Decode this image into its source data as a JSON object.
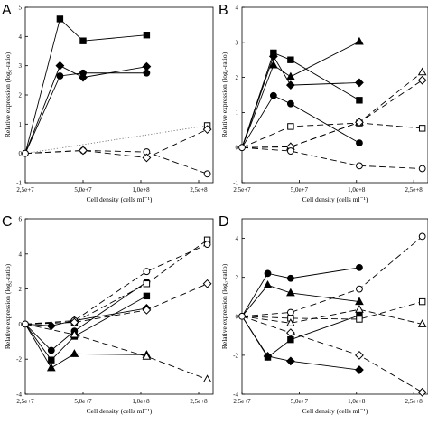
{
  "chart_data": [
    {
      "type": "line",
      "panel_label": "A",
      "xlabel": "Cell density (cells ml⁻¹)",
      "ylabel": "Relative expression (log₂-ratio)",
      "x_tick_labels": [
        "2,5e+7",
        "5,0e+7",
        "1,0e+8",
        "2,5e+8"
      ],
      "xlim": [
        0,
        3.25
      ],
      "ylim": [
        -1,
        5
      ],
      "y_ticks": [
        -1,
        0,
        1,
        2,
        3,
        4,
        5
      ],
      "series": [
        {
          "marker": "square-filled",
          "dash": "solid",
          "x": [
            0,
            0.6,
            1.0,
            2.1
          ],
          "y": [
            0,
            4.6,
            3.85,
            4.05
          ]
        },
        {
          "marker": "diamond-filled",
          "dash": "solid",
          "x": [
            0,
            0.6,
            1.0,
            2.1
          ],
          "y": [
            0,
            3.0,
            2.6,
            2.97
          ]
        },
        {
          "marker": "circle-filled",
          "dash": "solid",
          "x": [
            0,
            0.6,
            1.0,
            2.1
          ],
          "y": [
            0,
            2.65,
            2.75,
            2.75
          ]
        },
        {
          "marker": "square-open",
          "dash": "dotted",
          "x": [
            0,
            3.15
          ],
          "y": [
            0,
            0.95
          ]
        },
        {
          "marker": "circle-open",
          "dash": "dashed",
          "x": [
            0,
            1.0,
            2.1,
            3.15
          ],
          "y": [
            0,
            0.1,
            0.05,
            -0.7
          ]
        },
        {
          "marker": "diamond-open",
          "dash": "dashed",
          "x": [
            0,
            1.0,
            2.1,
            3.15
          ],
          "y": [
            0,
            0.1,
            -0.15,
            0.82
          ]
        }
      ]
    },
    {
      "type": "line",
      "panel_label": "B",
      "xlabel": "Cell density (cells ml⁻¹)",
      "ylabel": "Relative expression (log₂-ratio)",
      "x_tick_labels": [
        "2,5e+7",
        "5,0e+7",
        "1,0e+8",
        "2,5e+8"
      ],
      "xlim": [
        0,
        3.25
      ],
      "ylim": [
        -1,
        4
      ],
      "y_ticks": [
        -1,
        0,
        1,
        2,
        3,
        4
      ],
      "series": [
        {
          "marker": "square-filled",
          "dash": "solid",
          "x": [
            0,
            0.55,
            0.85,
            2.05
          ],
          "y": [
            0,
            2.7,
            2.5,
            1.35
          ]
        },
        {
          "marker": "triangle-filled",
          "dash": "solid",
          "x": [
            0,
            0.55,
            0.85,
            2.05
          ],
          "y": [
            0,
            2.35,
            2.02,
            3.02
          ]
        },
        {
          "marker": "diamond-filled",
          "dash": "solid",
          "x": [
            0,
            0.55,
            0.85,
            2.05
          ],
          "y": [
            0,
            2.6,
            1.78,
            1.85
          ]
        },
        {
          "marker": "circle-filled",
          "dash": "solid",
          "x": [
            0,
            0.55,
            0.85,
            2.05
          ],
          "y": [
            0,
            1.48,
            1.25,
            0.13
          ]
        },
        {
          "marker": "square-open",
          "dash": "dashed",
          "x": [
            0,
            0.85,
            2.05,
            3.15
          ],
          "y": [
            0,
            0.6,
            0.7,
            0.55
          ]
        },
        {
          "marker": "triangle-open",
          "dash": "dashed",
          "x": [
            0,
            0.85,
            2.05,
            3.15
          ],
          "y": [
            0,
            0.02,
            0.72,
            2.15
          ]
        },
        {
          "marker": "diamond-open",
          "dash": "dashed",
          "x": [
            0,
            0.85,
            2.05,
            3.15
          ],
          "y": [
            0,
            0.02,
            0.72,
            1.92
          ]
        },
        {
          "marker": "circle-open",
          "dash": "dashed",
          "x": [
            0,
            0.85,
            2.05,
            3.15
          ],
          "y": [
            0,
            -0.1,
            -0.52,
            -0.6
          ]
        }
      ]
    },
    {
      "type": "line",
      "panel_label": "C",
      "xlabel": "Cell density (cells ml⁻¹)",
      "ylabel": "Relative expression (log₂-ratio)",
      "x_tick_labels": [
        "2,5e+7",
        "5,0e+7",
        "1,0e+8",
        "2,5e+8"
      ],
      "xlim": [
        0,
        3.25
      ],
      "ylim": [
        -4,
        6
      ],
      "y_ticks": [
        -4,
        -2,
        0,
        2,
        4,
        6
      ],
      "series": [
        {
          "marker": "triangle-filled",
          "dash": "solid",
          "x": [
            0,
            0.45,
            0.85,
            2.1
          ],
          "y": [
            0,
            -2.5,
            -1.7,
            -1.75
          ]
        },
        {
          "marker": "square-filled",
          "dash": "solid",
          "x": [
            0,
            0.45,
            0.85,
            2.1
          ],
          "y": [
            0,
            -2.05,
            -0.7,
            1.6
          ]
        },
        {
          "marker": "circle-filled",
          "dash": "solid",
          "x": [
            0,
            0.45,
            0.85,
            2.1
          ],
          "y": [
            0,
            -1.5,
            -0.4,
            2.4
          ]
        },
        {
          "marker": "diamond-filled",
          "dash": "solid",
          "x": [
            0,
            0.45,
            0.85,
            2.1
          ],
          "y": [
            0,
            -0.1,
            0.2,
            0.9
          ]
        },
        {
          "marker": "square-open",
          "dash": "dashed",
          "x": [
            0,
            0.85,
            2.1,
            3.15
          ],
          "y": [
            0,
            0.1,
            2.3,
            4.8
          ]
        },
        {
          "marker": "circle-open",
          "dash": "dashed",
          "x": [
            0,
            0.85,
            2.1,
            3.15
          ],
          "y": [
            0,
            0.2,
            3.0,
            4.55
          ]
        },
        {
          "marker": "diamond-open",
          "dash": "dashed",
          "x": [
            0,
            0.85,
            2.1,
            3.15
          ],
          "y": [
            0,
            0.1,
            0.8,
            2.3
          ]
        },
        {
          "marker": "triangle-open",
          "dash": "dashed",
          "x": [
            0,
            0.85,
            2.1,
            3.15
          ],
          "y": [
            0,
            -0.6,
            -1.85,
            -3.15
          ]
        }
      ]
    },
    {
      "type": "line",
      "panel_label": "D",
      "xlabel": "Cell density (cells ml⁻¹)",
      "ylabel": "Relative expression (log₂-ratio)",
      "x_tick_labels": [
        "2,5e+7",
        "5,0e+7",
        "1,0e+8",
        "2,5e+8"
      ],
      "xlim": [
        0,
        3.25
      ],
      "ylim": [
        -4,
        5
      ],
      "y_ticks": [
        -4,
        -2,
        0,
        2,
        4
      ],
      "series": [
        {
          "marker": "circle-filled",
          "dash": "solid",
          "x": [
            0,
            0.45,
            0.85,
            2.05
          ],
          "y": [
            0,
            2.2,
            1.95,
            2.5
          ]
        },
        {
          "marker": "triangle-filled",
          "dash": "solid",
          "x": [
            0,
            0.45,
            0.85,
            2.05
          ],
          "y": [
            0,
            1.6,
            1.2,
            0.75
          ]
        },
        {
          "marker": "square-filled",
          "dash": "solid",
          "x": [
            0,
            0.45,
            0.85,
            2.05
          ],
          "y": [
            0,
            -2.1,
            -1.2,
            0.05
          ]
        },
        {
          "marker": "diamond-filled",
          "dash": "solid",
          "x": [
            0,
            0.45,
            0.85,
            2.05
          ],
          "y": [
            0,
            -2.05,
            -2.3,
            -2.75
          ]
        },
        {
          "marker": "circle-open",
          "dash": "dashed",
          "x": [
            0,
            0.85,
            2.05,
            3.15
          ],
          "y": [
            0,
            0.2,
            1.4,
            4.1
          ]
        },
        {
          "marker": "square-open",
          "dash": "dashed",
          "x": [
            0,
            0.85,
            2.05,
            3.15
          ],
          "y": [
            0,
            -0.1,
            -0.15,
            0.75
          ]
        },
        {
          "marker": "triangle-open",
          "dash": "dashed",
          "x": [
            0,
            0.85,
            2.05,
            3.15
          ],
          "y": [
            0,
            -0.35,
            0.35,
            -0.4
          ]
        },
        {
          "marker": "diamond-open",
          "dash": "dashed",
          "x": [
            0,
            0.85,
            2.05,
            3.15
          ],
          "y": [
            0,
            -0.85,
            -2.0,
            -3.9
          ]
        }
      ]
    }
  ]
}
